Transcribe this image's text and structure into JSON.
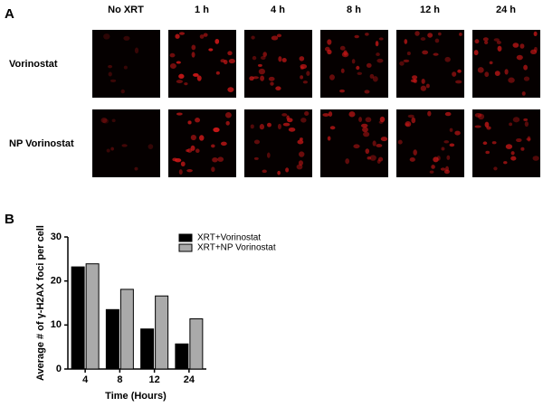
{
  "figure": {
    "panel_a_label": "A",
    "panel_b_label": "B",
    "columns": [
      "No XRT",
      "1 h",
      "4 h",
      "8 h",
      "12 h",
      "24 h"
    ],
    "rows": [
      "Vorinostat",
      "NP  Vorinostat"
    ]
  },
  "chart_data": {
    "type": "bar",
    "ylabel": "Average # of γ-H2AX foci per cell",
    "xlabel": "Time (Hours)",
    "categories": [
      "4",
      "8",
      "12",
      "24"
    ],
    "series": [
      {
        "name": "XRT+Vorinostat",
        "color": "#000000",
        "values": [
          23.2,
          13.5,
          9.1,
          5.7
        ]
      },
      {
        "name": "XRT+NP Vorinostat",
        "color": "#aaaaaa",
        "values": [
          23.9,
          18.1,
          16.6,
          11.4
        ]
      }
    ],
    "ylim": [
      0,
      30
    ],
    "yticks": [
      0,
      10,
      20,
      30
    ],
    "grid": false,
    "legend": "upper right"
  }
}
